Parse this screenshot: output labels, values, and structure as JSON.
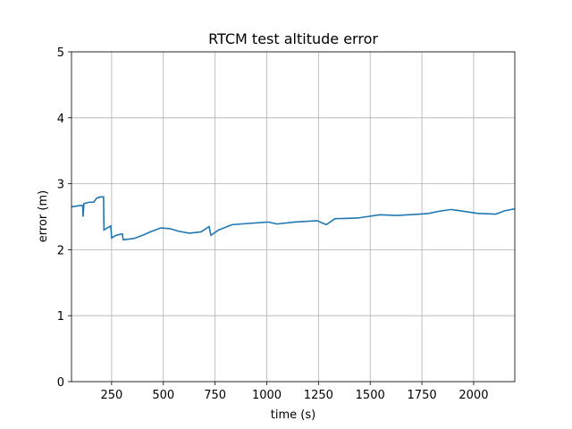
{
  "chart_data": {
    "type": "line",
    "title": "RTCM test altitude error",
    "xlabel": "time (s)",
    "ylabel": "error (m)",
    "x": [
      56,
      99,
      110,
      112,
      116,
      142,
      164,
      177,
      194,
      211,
      213,
      229,
      246,
      250,
      272,
      302,
      306,
      358,
      401,
      444,
      488,
      531,
      574,
      626,
      682,
      721,
      730,
      768,
      833,
      920,
      1006,
      1049,
      1135,
      1243,
      1287,
      1330,
      1438,
      1546,
      1632,
      1740,
      1783,
      1826,
      1891,
      1956,
      2021,
      2107,
      2150,
      2198
    ],
    "values": [
      2.65,
      2.67,
      2.67,
      2.5,
      2.7,
      2.72,
      2.72,
      2.78,
      2.8,
      2.8,
      2.3,
      2.33,
      2.36,
      2.18,
      2.22,
      2.24,
      2.15,
      2.17,
      2.22,
      2.28,
      2.33,
      2.32,
      2.28,
      2.25,
      2.27,
      2.35,
      2.22,
      2.3,
      2.38,
      2.4,
      2.42,
      2.39,
      2.42,
      2.44,
      2.38,
      2.47,
      2.48,
      2.53,
      2.52,
      2.54,
      2.55,
      2.58,
      2.61,
      2.58,
      2.55,
      2.54,
      2.59,
      2.62
    ],
    "color": "#1f77b4",
    "xlim": [
      56,
      2199
    ],
    "xticks": [
      250,
      500,
      750,
      1000,
      1250,
      1500,
      1750,
      2000
    ],
    "ylim": [
      0,
      5
    ],
    "yticks": [
      0,
      1,
      2,
      3,
      4,
      5
    ],
    "grid": true
  }
}
